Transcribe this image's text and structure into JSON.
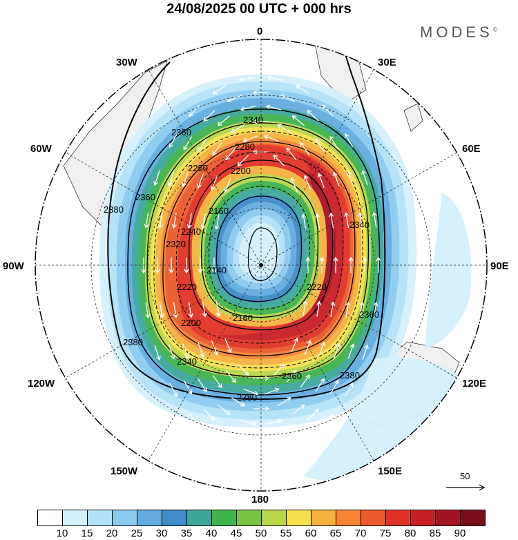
{
  "title": "24/08/2025  00 UTC  + 000 hrs",
  "brand": "MODES",
  "brand_mark": "©",
  "longitude_labels": [
    "0",
    "30E",
    "60E",
    "90E",
    "120E",
    "150E",
    "180",
    "150W",
    "120W",
    "90W",
    "60W",
    "30W"
  ],
  "contour_labels": [
    "2140",
    "2160",
    "2200",
    "2220",
    "2240",
    "2250",
    "2280",
    "2320",
    "2340",
    "2360",
    "2380"
  ],
  "reference_vector_label": "50",
  "colorbar": {
    "labels": [
      "10",
      "15",
      "20",
      "25",
      "30",
      "35",
      "40",
      "45",
      "50",
      "55",
      "60",
      "65",
      "70",
      "75",
      "80",
      "85",
      "90"
    ],
    "colors": [
      "#ffffff",
      "#d4f0fc",
      "#b3e2f8",
      "#8ccbf0",
      "#62ace0",
      "#3f8cc8",
      "#3fa79a",
      "#3fb34d",
      "#78c244",
      "#b8d64a",
      "#f7e04e",
      "#f6b23f",
      "#f58535",
      "#ec5a2d",
      "#e03327",
      "#c81e26",
      "#a41424",
      "#7a0f1c"
    ]
  }
}
